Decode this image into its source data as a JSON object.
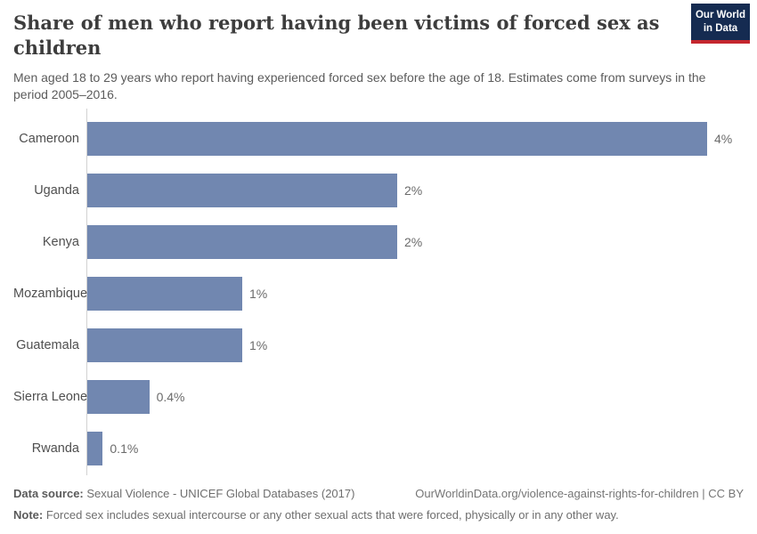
{
  "header": {
    "title": "Share of men who report having been victims of forced sex as children",
    "subtitle": "Men aged 18 to 29 years who report having experienced forced sex before the age of 18. Estimates come from surveys in the period 2005–2016.",
    "logo_line1": "Our World",
    "logo_line2": "in Data"
  },
  "chart_data": {
    "type": "bar",
    "orientation": "horizontal",
    "title": "Share of men who report having been victims of forced sex as children",
    "categories": [
      "Cameroon",
      "Uganda",
      "Kenya",
      "Mozambique",
      "Guatemala",
      "Sierra Leone",
      "Rwanda"
    ],
    "values": [
      4,
      2,
      2,
      1,
      1,
      0.4,
      0.1
    ],
    "value_labels": [
      "4%",
      "2%",
      "2%",
      "1%",
      "1%",
      "0.4%",
      "0.1%"
    ],
    "unit": "%",
    "xlim": [
      0,
      4
    ],
    "grid": false,
    "legend": "none",
    "bar_color": "#7187b0"
  },
  "colors": {
    "bar": "#7187b0",
    "axis_line": "#d2d2d2",
    "logo_navy": "#152b51",
    "logo_red": "#c4262e",
    "title_text": "#3d3d3d",
    "subtitle_text": "#5b5b5b"
  },
  "footer": {
    "data_source_label": "Data source:",
    "data_source_text": "Sexual Violence - UNICEF Global Databases (2017)",
    "url_text": "OurWorldinData.org/violence-against-rights-for-children | CC BY",
    "note_label": "Note:",
    "note_text": "Forced sex includes sexual intercourse or any other sexual acts that were forced, physically or in any other way."
  }
}
